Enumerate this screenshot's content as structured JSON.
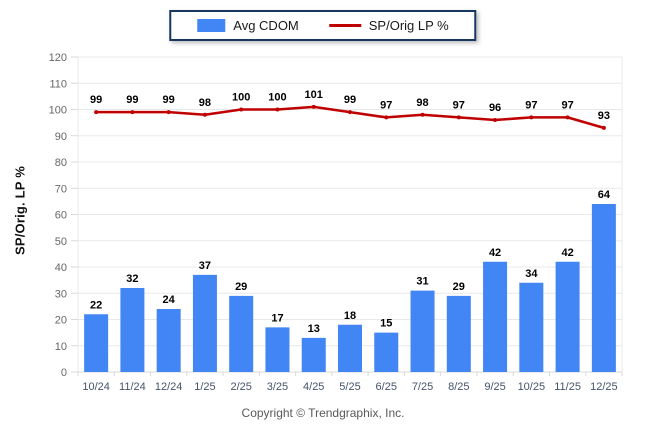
{
  "legend": {
    "items": [
      {
        "label": "Avg CDOM",
        "swatch": "bar-swatch",
        "color": "#4285F4"
      },
      {
        "label": "SP/Orig LP %",
        "swatch": "line-swatch",
        "color": "#C00000"
      }
    ]
  },
  "footer": {
    "text": "Copyright © Trendgraphix, Inc."
  },
  "chart_data": {
    "type": "bar+line",
    "title": "",
    "xlabel": "",
    "ylabel": "SP/Orig. LP %",
    "ylim": [
      0,
      120
    ],
    "ytick_step": 10,
    "grid": true,
    "legend_position": "top-center",
    "categories": [
      "10/24",
      "11/24",
      "12/24",
      "1/25",
      "2/25",
      "3/25",
      "4/25",
      "5/25",
      "6/25",
      "7/25",
      "8/25",
      "9/25",
      "10/25",
      "11/25",
      "12/25"
    ],
    "series": [
      {
        "name": "Avg CDOM",
        "type": "bar",
        "color": "#4285F4",
        "values": [
          22,
          32,
          24,
          37,
          29,
          17,
          13,
          18,
          15,
          31,
          29,
          42,
          34,
          42,
          64
        ]
      },
      {
        "name": "SP/Orig LP %",
        "type": "line",
        "color": "#C00000",
        "values": [
          99,
          99,
          99,
          98,
          100,
          100,
          101,
          99,
          97,
          98,
          97,
          96,
          97,
          97,
          93
        ]
      }
    ]
  }
}
